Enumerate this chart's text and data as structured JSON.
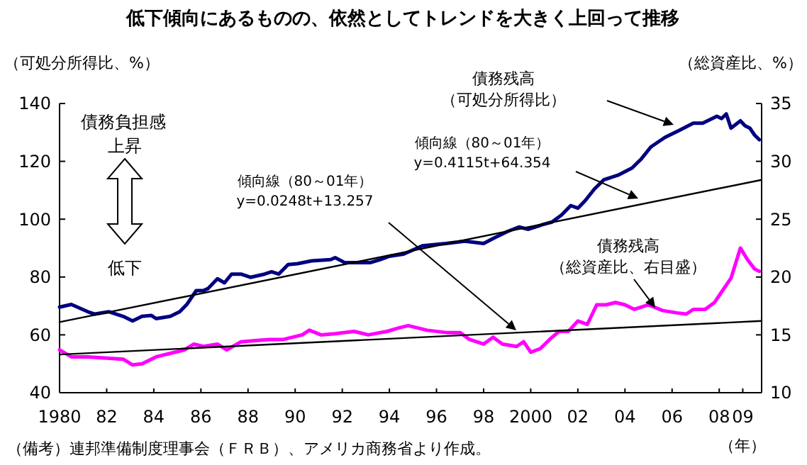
{
  "chart_data": {
    "type": "line",
    "title": "低下傾向にあるものの、依然としてトレンドを大きく上回って推移",
    "ylabel": "（可処分所得比、%）",
    "y2label": "（総資産比、%）",
    "xlabel": "（年）",
    "annotations": [
      "債務負担感",
      "上昇",
      "低下",
      "債務残高",
      "（可処分所得比）",
      "傾向線（80～01年）",
      "y=0.4115t+64.354",
      "傾向線（80～01年）",
      "y=0.0248t+13.257",
      "債務残高",
      "（総資産比、右目盛）",
      "（備考）連邦準備制度理事会（ＦＲＢ）、アメリカ商務省より作成。"
    ],
    "xlim": [
      1980,
      2009.8
    ],
    "xticks": [
      {
        "value": 1980,
        "label": "1980"
      },
      {
        "value": 1982,
        "label": "82"
      },
      {
        "value": 1984,
        "label": "84"
      },
      {
        "value": 1986,
        "label": "86"
      },
      {
        "value": 1988,
        "label": "88"
      },
      {
        "value": 1990,
        "label": "90"
      },
      {
        "value": 1992,
        "label": "92"
      },
      {
        "value": 1994,
        "label": "94"
      },
      {
        "value": 1996,
        "label": "96"
      },
      {
        "value": 1998,
        "label": "98"
      },
      {
        "value": 2000,
        "label": "2000"
      },
      {
        "value": 2002,
        "label": "02"
      },
      {
        "value": 2004,
        "label": "04"
      },
      {
        "value": 2006,
        "label": "06"
      },
      {
        "value": 2008,
        "label": "08"
      },
      {
        "value": 2009,
        "label": "09"
      }
    ],
    "ylim": [
      40,
      140
    ],
    "yticks": [
      40,
      60,
      80,
      100,
      120,
      140
    ],
    "y2lim": [
      10,
      35
    ],
    "y2ticks": [
      10,
      15,
      20,
      25,
      30,
      35
    ],
    "series": [
      {
        "color": "#000080",
        "x": [
          1980,
          1980.5,
          1981.2,
          1981.5,
          1982.1,
          1982.7,
          1983.1,
          1983.5,
          1983.9,
          1984.1,
          1984.7,
          1985.1,
          1985.4,
          1985.8,
          1986.1,
          1986.3,
          1986.7,
          1987,
          1987.3,
          1987.7,
          1988.1,
          1988.7,
          1989,
          1989.3,
          1989.7,
          1990.1,
          1990.7,
          1991.5,
          1991.7,
          1992.1,
          1992.8,
          1993.2,
          1993.6,
          1994,
          1994.6,
          1995.4,
          1996.4,
          1997.2,
          1998,
          1998.4,
          1999,
          1999.5,
          1999.9,
          2000.5,
          2000.9,
          2001.3,
          2001.7,
          2002,
          2002.3,
          2002.7,
          2003.1,
          2003.7,
          2004.3,
          2004.7,
          2005.1,
          2005.7,
          2006.3,
          2006.9,
          2007.3,
          2007.9,
          2008.1,
          2008.3,
          2008.5,
          2008.9,
          2009.1,
          2009.3,
          2009.5,
          2009.7
        ],
        "values": [
          69.6,
          70.5,
          68,
          67.2,
          68,
          66.4,
          64.8,
          66.4,
          66.7,
          65.6,
          66.4,
          68,
          70.5,
          75.3,
          75.3,
          76,
          79.4,
          78,
          81,
          81,
          79.9,
          81,
          81.8,
          81,
          84.3,
          84.6,
          85.6,
          86,
          86.7,
          85,
          85,
          85,
          86,
          87.2,
          87.9,
          90.8,
          91.6,
          92.4,
          91.6,
          93.3,
          95.7,
          97.3,
          96.5,
          98.1,
          99,
          101.4,
          104.7,
          103.8,
          106.3,
          110.4,
          113.6,
          115.2,
          117.7,
          120.9,
          125,
          128.3,
          130.7,
          133.2,
          133.2,
          135.6,
          134.8,
          136.4,
          131.5,
          134,
          132.3,
          131.5,
          129.1,
          127.5
        ]
      },
      {
        "color": "#ff00ff",
        "axis": "y2",
        "x": [
          1980,
          1980.5,
          1981.2,
          1981.9,
          1982.7,
          1983.1,
          1983.5,
          1984.1,
          1984.7,
          1985.3,
          1985.7,
          1986.1,
          1986.7,
          1987.1,
          1987.7,
          1988.3,
          1988.9,
          1989.5,
          1990.3,
          1990.6,
          1991.1,
          1991.7,
          1992.5,
          1993.1,
          1993.9,
          1994.4,
          1994.8,
          1995.6,
          1996.4,
          1997,
          1997.4,
          1998,
          1998.4,
          1998.8,
          1999.4,
          1999.7,
          2000,
          2000.4,
          2000.8,
          2001.2,
          2001.6,
          2002,
          2002.4,
          2002.8,
          2003.2,
          2003.6,
          2004,
          2004.4,
          2005,
          2005.6,
          2006.2,
          2006.6,
          2006.9,
          2007.4,
          2007.8,
          2008.2,
          2008.5,
          2008.9,
          2009.2,
          2009.5,
          2009.7
        ],
        "values": [
          13.7,
          13.1,
          13.1,
          13,
          12.9,
          12.4,
          12.5,
          13.1,
          13.4,
          13.7,
          14.2,
          14,
          14.2,
          13.7,
          14.4,
          14.5,
          14.6,
          14.6,
          15,
          15.4,
          15,
          15.1,
          15.3,
          15,
          15.3,
          15.6,
          15.8,
          15.4,
          15.2,
          15.2,
          14.6,
          14.2,
          14.8,
          14.2,
          14,
          14.4,
          13.5,
          13.8,
          14.6,
          15.3,
          15.3,
          16.2,
          15.9,
          17.6,
          17.6,
          17.8,
          17.6,
          17.2,
          17.6,
          17.1,
          16.9,
          16.8,
          17.2,
          17.2,
          17.8,
          19,
          19.9,
          22.5,
          21.5,
          20.7,
          20.5
        ]
      },
      {
        "color": "#000000",
        "x": [
          1980,
          2009.8
        ],
        "values": [
          64.4,
          113.6
        ]
      },
      {
        "color": "#000000",
        "axis": "y2",
        "x": [
          1980,
          2009.8
        ],
        "values": [
          13.3,
          16.2
        ]
      }
    ]
  }
}
